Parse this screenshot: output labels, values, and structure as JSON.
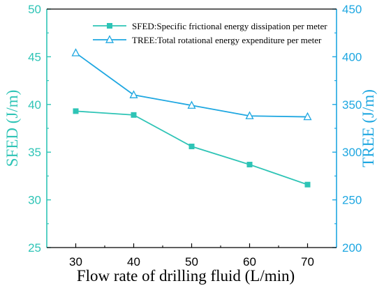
{
  "chart_data": {
    "type": "line",
    "xlabel": "Flow rate of drilling fluid (L/min)",
    "xlim": [
      25,
      75
    ],
    "x_ticks": [
      30,
      40,
      50,
      60,
      70
    ],
    "left_axis": {
      "label": "SFED (J/m)",
      "ylim": [
        25,
        50
      ],
      "ticks": [
        25,
        30,
        35,
        40,
        45,
        50
      ],
      "color": "#2ec4b6"
    },
    "right_axis": {
      "label": "TREE (J/m)",
      "ylim": [
        200,
        450
      ],
      "ticks": [
        200,
        250,
        300,
        350,
        400,
        450
      ],
      "color": "#1ea7e1"
    },
    "legend_position": "top-right",
    "series": [
      {
        "name": "SFED:Specific frictional energy dissipation per meter",
        "axis": "left",
        "marker": "square",
        "color": "#2ec4b6",
        "x": [
          30,
          40,
          50,
          60,
          70
        ],
        "y": [
          39.3,
          38.9,
          35.6,
          33.7,
          31.6
        ]
      },
      {
        "name": "TREE:Total rotational energy expenditure per meter",
        "axis": "right",
        "marker": "triangle-open",
        "color": "#1ea7e1",
        "x": [
          30,
          40,
          50,
          60,
          70
        ],
        "y": [
          404,
          360,
          349,
          338,
          337
        ]
      }
    ]
  }
}
